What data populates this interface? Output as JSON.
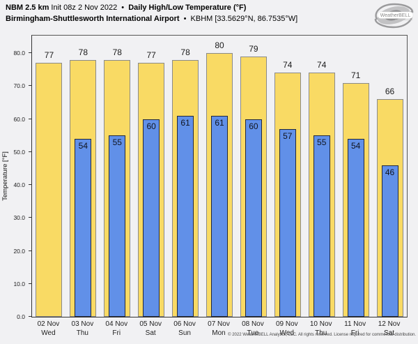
{
  "header": {
    "title_model": "NBM 2.5 km",
    "title_init": "Init 08z 2 Nov 2022",
    "title_sep": "•",
    "title_product": "Daily High/Low Temperature (°F)",
    "station_name": "Birmingham-Shuttlesworth International Airport",
    "station_sep": "•",
    "station_code": "KBHM [33.5629°N, 86.7535°W]",
    "logo_text": "WeatherBELL"
  },
  "chart_data": {
    "type": "bar",
    "title": "Daily High/Low Temperature (°F)",
    "categories": [
      {
        "date": "02 Nov",
        "day": "Wed"
      },
      {
        "date": "03 Nov",
        "day": "Thu"
      },
      {
        "date": "04 Nov",
        "day": "Fri"
      },
      {
        "date": "05 Nov",
        "day": "Sat"
      },
      {
        "date": "06 Nov",
        "day": "Sun"
      },
      {
        "date": "07 Nov",
        "day": "Mon"
      },
      {
        "date": "08 Nov",
        "day": "Tue"
      },
      {
        "date": "09 Nov",
        "day": "Wed"
      },
      {
        "date": "10 Nov",
        "day": "Thu"
      },
      {
        "date": "11 Nov",
        "day": "Fri"
      },
      {
        "date": "12 Nov",
        "day": "Sat"
      }
    ],
    "series": [
      {
        "name": "High",
        "color": "#F9DA64",
        "border_color": "#8a8a8a",
        "values": [
          77,
          78,
          78,
          77,
          78,
          80,
          79,
          74,
          74,
          71,
          66
        ]
      },
      {
        "name": "Low",
        "color": "#6190E8",
        "border_color": "#22283a",
        "values": [
          null,
          54,
          55,
          60,
          61,
          61,
          60,
          57,
          55,
          54,
          46
        ]
      }
    ],
    "ylabel": "Temperature [°F]",
    "ylim": [
      0,
      85.3
    ],
    "yticks": [
      0,
      10,
      20,
      30,
      40,
      50,
      60,
      70,
      80
    ],
    "ytick_labels": [
      "0.0",
      "10.0",
      "20.0",
      "30.0",
      "40.0",
      "50.0",
      "60.0",
      "70.0",
      "80.0"
    ],
    "grid": false,
    "legend": "none"
  },
  "footer": {
    "copyright": "© 2022 WeatherBELL Analytics, LLC. All rights reserved. License required for commercial distribution."
  }
}
